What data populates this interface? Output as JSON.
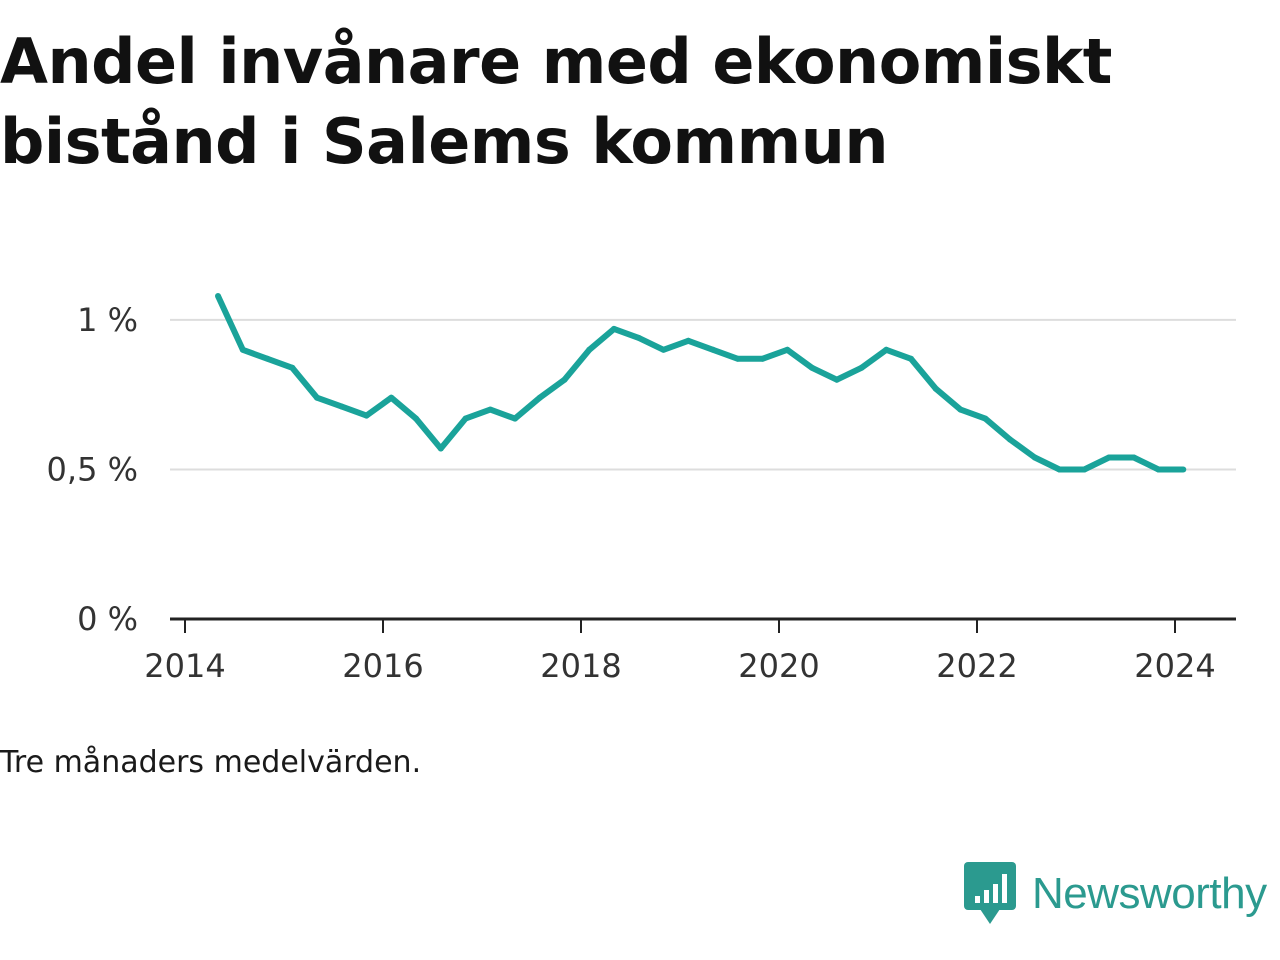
{
  "title": "Andel invånare med ekonomiskt bistånd i Salems kommun",
  "note": "Tre månaders medelvärden.",
  "brand": {
    "name": "Newsworthy",
    "icon": "bar-chart-speech-bubble-icon",
    "color": "#2b9a8f"
  },
  "colors": {
    "line": "#1aa39a",
    "grid": "#dddddd",
    "axis": "#222222"
  },
  "chart_data": {
    "type": "line",
    "title": "Andel invånare med ekonomiskt bistånd i Salems kommun",
    "xlabel": "",
    "ylabel": "",
    "x_ticks": [
      "2014",
      "2016",
      "2018",
      "2020",
      "2022",
      "2024"
    ],
    "y_ticks": [
      "0 %",
      "0,5 %",
      "1 %"
    ],
    "ylim": [
      0,
      1.1
    ],
    "grid": "horizontal",
    "series": [
      {
        "color": "#1aa39a",
        "points": [
          [
            "2014-05",
            1.08
          ],
          [
            "2014-08",
            0.9
          ],
          [
            "2014-11",
            0.87
          ],
          [
            "2015-02",
            0.84
          ],
          [
            "2015-05",
            0.74
          ],
          [
            "2015-08",
            0.71
          ],
          [
            "2015-11",
            0.68
          ],
          [
            "2016-02",
            0.74
          ],
          [
            "2016-05",
            0.67
          ],
          [
            "2016-08",
            0.57
          ],
          [
            "2016-11",
            0.67
          ],
          [
            "2017-02",
            0.7
          ],
          [
            "2017-05",
            0.67
          ],
          [
            "2017-08",
            0.74
          ],
          [
            "2017-11",
            0.8
          ],
          [
            "2018-02",
            0.9
          ],
          [
            "2018-05",
            0.97
          ],
          [
            "2018-08",
            0.94
          ],
          [
            "2018-11",
            0.9
          ],
          [
            "2019-02",
            0.93
          ],
          [
            "2019-05",
            0.9
          ],
          [
            "2019-08",
            0.87
          ],
          [
            "2019-11",
            0.87
          ],
          [
            "2020-02",
            0.9
          ],
          [
            "2020-05",
            0.84
          ],
          [
            "2020-08",
            0.8
          ],
          [
            "2020-11",
            0.84
          ],
          [
            "2021-02",
            0.9
          ],
          [
            "2021-05",
            0.87
          ],
          [
            "2021-08",
            0.77
          ],
          [
            "2021-11",
            0.7
          ],
          [
            "2022-02",
            0.67
          ],
          [
            "2022-05",
            0.6
          ],
          [
            "2022-08",
            0.54
          ],
          [
            "2022-11",
            0.5
          ],
          [
            "2023-02",
            0.5
          ],
          [
            "2023-05",
            0.54
          ],
          [
            "2023-08",
            0.54
          ],
          [
            "2023-11",
            0.5
          ],
          [
            "2024-02",
            0.5
          ]
        ]
      }
    ]
  }
}
